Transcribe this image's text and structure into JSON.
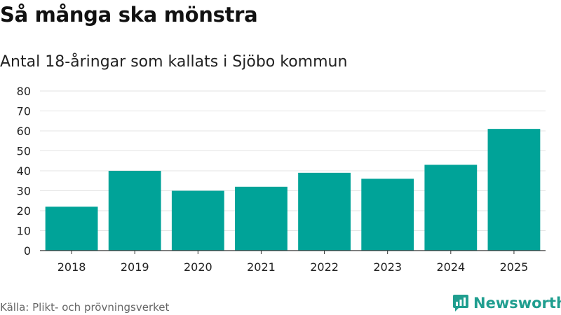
{
  "title": "Så många ska mönstra",
  "subtitle": "Antal 18-åringar som kallats i Sjöbo kommun",
  "source": "Källa: Plikt- och prövningsverket",
  "brand": {
    "name": "Newsworthy",
    "icon": "newsworthy-logo-icon",
    "color": "#1f9e8f"
  },
  "chart_data": {
    "type": "bar",
    "categories": [
      "2018",
      "2019",
      "2020",
      "2021",
      "2022",
      "2023",
      "2024",
      "2025"
    ],
    "values": [
      22,
      40,
      30,
      32,
      39,
      36,
      43,
      61
    ],
    "ylim": [
      0,
      80
    ],
    "yticks": [
      0,
      10,
      20,
      30,
      40,
      50,
      60,
      70,
      80
    ],
    "grid": true,
    "bar_color": "#00a398"
  }
}
